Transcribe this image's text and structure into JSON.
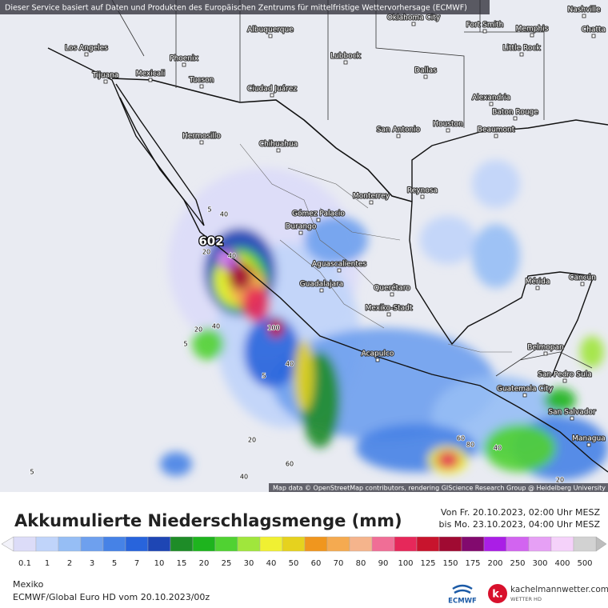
{
  "header": {
    "credit": "Dieser Service basiert auf Daten und Produkten des Europäischen Zentrums für mittelfristige Wettervorhersage (ECMWF)"
  },
  "map": {
    "cities": [
      "Nashville",
      "Oklahoma City",
      "Albuquerque",
      "Fort Smith",
      "Memphis",
      "Chatta",
      "Los Angeles",
      "Little Rock",
      "Phoenix",
      "Lubbock",
      "Tijuana",
      "Mexicali",
      "Dallas",
      "Tucson",
      "Ciudad Juárez",
      "Alexandria",
      "Baton Rouge",
      "Houston",
      "San Antonio",
      "Beaumont",
      "Hermosillo",
      "Chihuahua",
      "Reynosa",
      "Monterrey",
      "Gómez Palacio",
      "Durango",
      "Aguascalientes",
      "Mérida",
      "Cancún",
      "Guadalajara",
      "Querétaro",
      "Mexiko-Stadt",
      "Belmopan",
      "Acapulco",
      "San Pedro Sula",
      "Guatemala City",
      "San Salvador",
      "Managua"
    ],
    "max_label": "602",
    "contour_labels": [
      "5",
      "40",
      "20",
      "40",
      "100",
      "40",
      "20",
      "5",
      "40",
      "5",
      "60",
      "80",
      "40",
      "20",
      "5",
      "20",
      "60",
      "40"
    ],
    "attribution": "Map data © OpenStreetMap contributors, rendering GIScience Research Group @ Heidelberg University"
  },
  "legend": {
    "title": "Akkumulierte Niederschlagsmenge (mm)",
    "period": [
      "Von Fr. 20.10.2023, 02:00 Uhr MESZ",
      "bis Mo. 23.10.2023, 04:00 Uhr MESZ"
    ],
    "levels": [
      0.1,
      1,
      2,
      3,
      5,
      7,
      10,
      15,
      20,
      25,
      30,
      40,
      50,
      60,
      70,
      80,
      90,
      100,
      125,
      150,
      175,
      200,
      250,
      300,
      400,
      500
    ],
    "colors": [
      "#dcdcf8",
      "#c0d4fa",
      "#96bef5",
      "#6ea0ee",
      "#4682e6",
      "#2864dc",
      "#1e46b4",
      "#1e8c28",
      "#1eb41e",
      "#50d232",
      "#a0e63c",
      "#f0f032",
      "#e6d21e",
      "#f0961e",
      "#f5aa50",
      "#f5b48c",
      "#f06e96",
      "#e6285a",
      "#c8142d",
      "#a00a32",
      "#820a6e",
      "#aa1ee6",
      "#d264f0",
      "#e6a0f5",
      "#f5d2fa",
      "#d2d2d2"
    ]
  },
  "footer": {
    "region": "Mexiko",
    "model": "ECMWF/Global Euro HD vom  20.10.2023/00z",
    "logo_ecmwf": "ECMWF",
    "logo_site": "kachelmannwetter.com",
    "logo_sub": "WETTER HD"
  }
}
